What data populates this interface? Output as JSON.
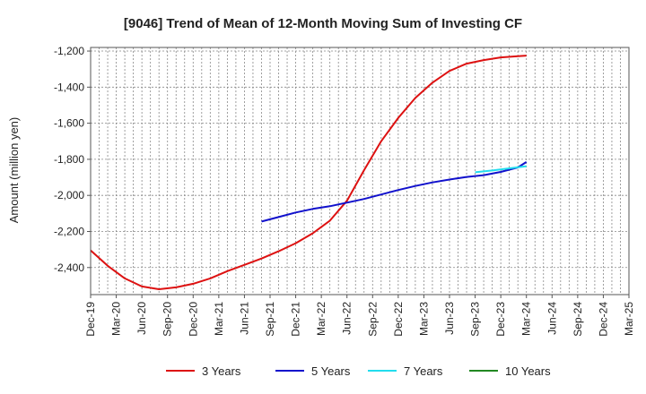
{
  "chart_data": {
    "type": "line",
    "title": "[9046]  Trend of Mean of 12-Month Moving Sum of Investing CF",
    "ylabel": "Amount (million yen)",
    "xlabel": "",
    "ylim": [
      -2550,
      -1180
    ],
    "yticks": [
      -1200,
      -1400,
      -1600,
      -1800,
      -2000,
      -2200,
      -2400
    ],
    "ytick_labels": [
      "-1,200",
      "-1,400",
      "-1,600",
      "-1,800",
      "-2,000",
      "-2,200",
      "-2,400"
    ],
    "xlim": [
      "2019-12",
      "2025-03"
    ],
    "xticks": [
      "Dec-19",
      "Mar-20",
      "Jun-20",
      "Sep-20",
      "Dec-20",
      "Mar-21",
      "Jun-21",
      "Sep-21",
      "Dec-21",
      "Mar-22",
      "Jun-22",
      "Sep-22",
      "Dec-22",
      "Mar-23",
      "Jun-23",
      "Sep-23",
      "Dec-23",
      "Mar-24",
      "Jun-24",
      "Sep-24",
      "Dec-24",
      "Mar-25"
    ],
    "grid": true,
    "legend_position": "bottom",
    "series": [
      {
        "name": "3 Years",
        "color": "#dd1111",
        "x": [
          "2019-12",
          "2020-02",
          "2020-04",
          "2020-06",
          "2020-08",
          "2020-10",
          "2020-12",
          "2021-02",
          "2021-04",
          "2021-06",
          "2021-08",
          "2021-10",
          "2021-12",
          "2022-02",
          "2022-04",
          "2022-06",
          "2022-08",
          "2022-10",
          "2022-12",
          "2023-02",
          "2023-04",
          "2023-06",
          "2023-08",
          "2023-10",
          "2023-12",
          "2024-02",
          "2024-03"
        ],
        "y": [
          -2305,
          -2390,
          -2460,
          -2505,
          -2520,
          -2510,
          -2490,
          -2460,
          -2420,
          -2385,
          -2350,
          -2310,
          -2265,
          -2210,
          -2140,
          -2030,
          -1860,
          -1700,
          -1570,
          -1460,
          -1375,
          -1310,
          -1270,
          -1250,
          -1235,
          -1228,
          -1225
        ]
      },
      {
        "name": "5 Years",
        "color": "#1111cc",
        "x": [
          "2021-08",
          "2021-10",
          "2021-12",
          "2022-02",
          "2022-04",
          "2022-06",
          "2022-08",
          "2022-10",
          "2022-12",
          "2023-02",
          "2023-04",
          "2023-06",
          "2023-08",
          "2023-10",
          "2023-12",
          "2024-02",
          "2024-03"
        ],
        "y": [
          -2145,
          -2120,
          -2095,
          -2075,
          -2060,
          -2040,
          -2020,
          -1995,
          -1970,
          -1948,
          -1928,
          -1912,
          -1898,
          -1888,
          -1870,
          -1845,
          -1815
        ]
      },
      {
        "name": "7 Years",
        "color": "#22ddee",
        "x": [
          "2023-09",
          "2023-11",
          "2024-01",
          "2024-03"
        ],
        "y": [
          -1872,
          -1862,
          -1850,
          -1838
        ]
      },
      {
        "name": "10 Years",
        "color": "#228822",
        "x": [],
        "y": []
      }
    ]
  }
}
